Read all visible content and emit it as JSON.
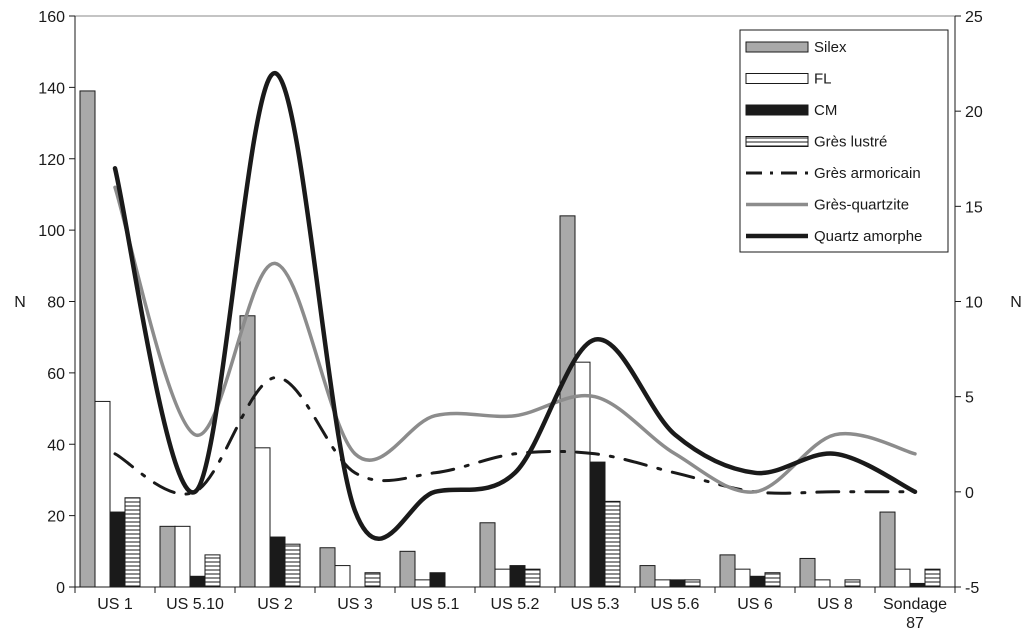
{
  "chart_data": {
    "type": "bar",
    "categories": [
      "US 1",
      "US 5.10",
      "US 2",
      "US 3",
      "US 5.1",
      "US 5.2",
      "US 5.3",
      "US 5.6",
      "US 6",
      "US 8",
      "Sondage 87"
    ],
    "y_left": {
      "label": "N",
      "range": [
        0,
        160
      ],
      "ticks": [
        0,
        20,
        40,
        60,
        80,
        100,
        120,
        140,
        160
      ]
    },
    "y_right": {
      "label": "N",
      "range": [
        -5,
        25
      ],
      "ticks": [
        -5,
        0,
        5,
        10,
        15,
        20,
        25
      ]
    },
    "grid": false,
    "legend_position": "top-right",
    "bar_series": [
      {
        "name": "Silex",
        "color": "#a9a9a9",
        "values": [
          139,
          17,
          76,
          11,
          10,
          18,
          104,
          6,
          9,
          8,
          21
        ]
      },
      {
        "name": "FL",
        "color": "#ffffff",
        "values": [
          52,
          17,
          39,
          6,
          2,
          5,
          63,
          2,
          5,
          2,
          5
        ]
      },
      {
        "name": "CM",
        "color": "#1a1a1a",
        "values": [
          21,
          3,
          14,
          0,
          4,
          6,
          35,
          2,
          3,
          0,
          1
        ]
      },
      {
        "name": "Grès lustré",
        "color": "#ffffff",
        "pattern": "horizontal-stripes",
        "values": [
          25,
          9,
          12,
          4,
          0,
          5,
          24,
          2,
          4,
          2,
          5
        ]
      }
    ],
    "line_series": [
      {
        "name": "Grès armoricain",
        "color": "#1a1a1a",
        "style": "dash-dot",
        "axis": "right",
        "values": [
          2,
          0,
          6,
          1,
          1,
          2,
          2,
          1,
          0,
          0,
          0
        ]
      },
      {
        "name": "Grès-quartzite",
        "color": "#8c8c8c",
        "style": "solid",
        "axis": "right",
        "values": [
          16,
          3,
          12,
          2,
          4,
          4,
          5,
          2,
          0,
          3,
          2
        ]
      },
      {
        "name": "Quartz amorphe",
        "color": "#1a1a1a",
        "style": "solid-thick",
        "axis": "right",
        "values": [
          17,
          0,
          22,
          -1,
          0,
          1,
          8,
          3,
          1,
          2,
          0
        ]
      }
    ]
  }
}
